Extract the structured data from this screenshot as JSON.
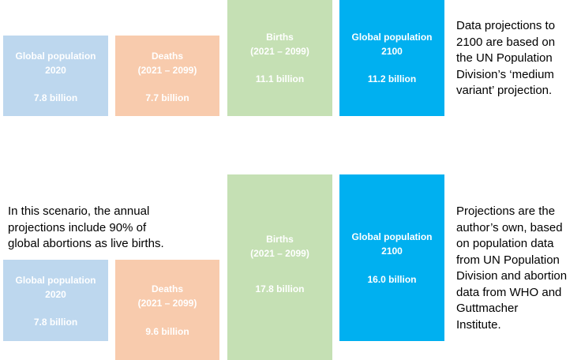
{
  "colors": {
    "population_2020": "#bdd7ee",
    "deaths": "#f8cbad",
    "births": "#c5e0b4",
    "population_2100": "#00b0f0"
  },
  "scenario1": {
    "boxes": [
      {
        "label1": "Global population",
        "label2": "2020",
        "value": "7.8 billion"
      },
      {
        "label1": "Deaths",
        "label2": "(2021 – 2099)",
        "value": "7.7 billion"
      },
      {
        "label1": "Births",
        "label2": "(2021 – 2099)",
        "value": "11.1 billion"
      },
      {
        "label1": "Global population",
        "label2": "2100",
        "value": "11.2 billion"
      }
    ],
    "note": [
      "Data projections to",
      "2100 are based on",
      "the UN Population",
      "Division’s ‘medium",
      "variant’ projection."
    ]
  },
  "scenario2": {
    "boxes": [
      {
        "label1": "Global population",
        "label2": "2020",
        "value": "7.8 billion"
      },
      {
        "label1": "Deaths",
        "label2": "(2021 – 2099)",
        "value": "9.6 billion"
      },
      {
        "label1": "Births",
        "label2": "(2021 – 2099)",
        "value": "17.8 billion"
      },
      {
        "label1": "Global population",
        "label2": "2100",
        "value": "16.0 billion"
      }
    ],
    "scenario_note": [
      "In this scenario, the annual",
      "projections include 90% of",
      "global abortions as live births."
    ],
    "note": [
      "Projections are the",
      "author’s own, based",
      "on population data",
      "from UN Population",
      "Division and abortion",
      "data from WHO and",
      "Guttmacher",
      "Institute."
    ]
  }
}
